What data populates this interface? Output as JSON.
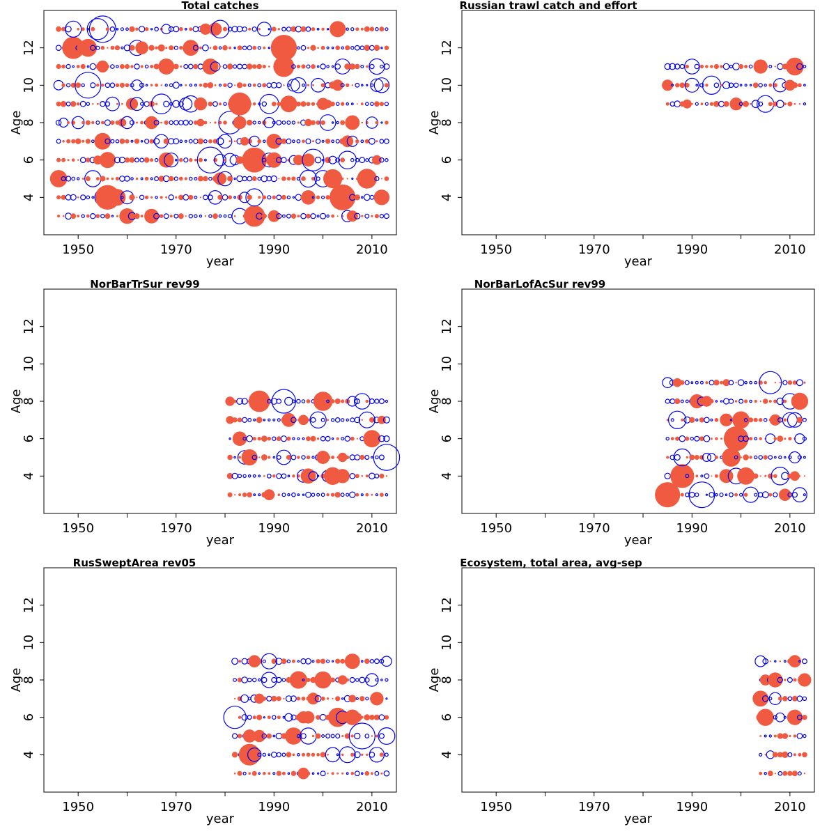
{
  "axis": {
    "xlabel": "year",
    "ylabel": "Age",
    "xticks": [
      1950,
      1970,
      1990,
      2010
    ],
    "yticks": [
      4,
      6,
      8,
      10,
      12
    ],
    "xlim": [
      1943,
      2015
    ],
    "ylim": [
      2.0,
      14.0
    ]
  },
  "colors": {
    "positive": "#F05A40",
    "negative": "#0000EE"
  },
  "chart_data": [
    {
      "type": "scatter",
      "title": "Total catches",
      "year_range": [
        1946,
        2013
      ],
      "ages": [
        3,
        4,
        5,
        6,
        7,
        8,
        9,
        10,
        11,
        12,
        13
      ],
      "seed": 11
    },
    {
      "type": "scatter",
      "title": "Russian trawl catch and effort",
      "year_range": [
        1985,
        2013
      ],
      "ages": [
        9,
        10,
        11
      ],
      "seed": 23
    },
    {
      "type": "scatter",
      "title": "NorBarTrSur rev99",
      "year_range": [
        1981,
        2013
      ],
      "ages": [
        3,
        4,
        5,
        6,
        7,
        8
      ],
      "seed": 37
    },
    {
      "type": "scatter",
      "title": "NorBarLofAcSur rev99",
      "year_range": [
        1985,
        2013
      ],
      "ages": [
        3,
        4,
        5,
        6,
        7,
        8,
        9
      ],
      "seed": 41
    },
    {
      "type": "scatter",
      "title": "RusSweptArea rev05",
      "year_range": [
        1982,
        2013
      ],
      "ages": [
        3,
        4,
        5,
        6,
        7,
        8,
        9
      ],
      "seed": 53
    },
    {
      "type": "scatter",
      "title": "Ecosystem, total area, avg-sep",
      "year_range": [
        2004,
        2013
      ],
      "ages": [
        3,
        4,
        5,
        6,
        7,
        8,
        9
      ],
      "seed": 67
    }
  ]
}
